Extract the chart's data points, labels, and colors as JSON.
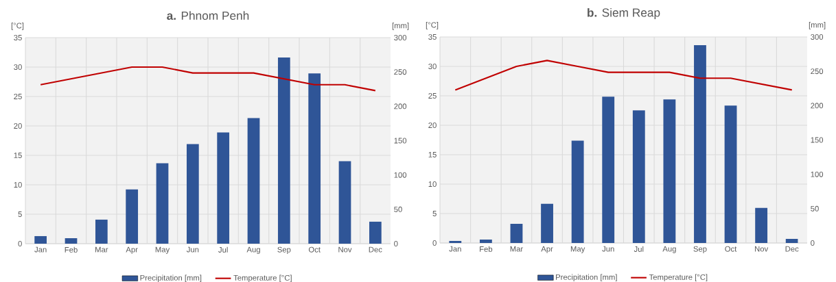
{
  "chart_data": [
    {
      "type": "bar",
      "title": "**a.** Phnom Penh",
      "ylabel": "[°C]",
      "y2label": "[mm]",
      "categories": [
        "Jan",
        "Feb",
        "Mar",
        "Apr",
        "May",
        "Jun",
        "Jul",
        "Aug",
        "Sep",
        "Oct",
        "Nov",
        "Dec"
      ],
      "series": [
        {
          "name": "Precipitation [mm]",
          "axis": "y2",
          "color": "#2f5597",
          "values": [
            11,
            8,
            35,
            79,
            117,
            145,
            162,
            183,
            271,
            248,
            120,
            32
          ]
        },
        {
          "name": "Temperature [°C]",
          "type": "line",
          "axis": "y",
          "color": "#c00000",
          "values": [
            27,
            28,
            29,
            30,
            30,
            29,
            29,
            29,
            28,
            27,
            27,
            26
          ]
        }
      ],
      "ylim": [
        0,
        35
      ],
      "yticks": [
        0,
        5,
        10,
        15,
        20,
        25,
        30,
        35
      ],
      "y2lim": [
        0,
        300
      ],
      "y2ticks": [
        0,
        50,
        100,
        150,
        200,
        250,
        300
      ],
      "grid": true,
      "legend": "bottom"
    },
    {
      "type": "bar",
      "title": "**b.** Siem Reap",
      "ylabel": "[°C]",
      "y2label": "[mm]",
      "categories": [
        "Jan",
        "Feb",
        "Mar",
        "Apr",
        "May",
        "Jun",
        "Jul",
        "Aug",
        "Sep",
        "Oct",
        "Nov",
        "Dec"
      ],
      "series": [
        {
          "name": "Precipitation [mm]",
          "axis": "y2",
          "color": "#2f5597",
          "values": [
            3,
            5,
            28,
            57,
            149,
            213,
            193,
            209,
            288,
            200,
            51,
            6
          ]
        },
        {
          "name": "Temperature [°C]",
          "type": "line",
          "axis": "y",
          "color": "#c00000",
          "values": [
            26,
            28,
            30,
            31,
            30,
            29,
            29,
            29,
            28,
            28,
            27,
            26
          ]
        }
      ],
      "ylim": [
        0,
        35
      ],
      "yticks": [
        0,
        5,
        10,
        15,
        20,
        25,
        30,
        35
      ],
      "y2lim": [
        0,
        300
      ],
      "y2ticks": [
        0,
        50,
        100,
        150,
        200,
        250,
        300
      ],
      "grid": true,
      "legend": "bottom"
    }
  ]
}
